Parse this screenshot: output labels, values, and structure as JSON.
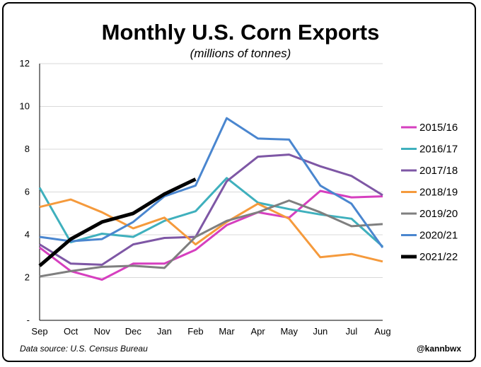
{
  "header": {
    "title": "Monthly U.S. Corn Exports",
    "subtitle": "(millions of tonnes)"
  },
  "footer": {
    "source": "Data source: U.S. Census Bureau",
    "handle": "@kannbwx"
  },
  "chart_data": {
    "type": "line",
    "title": "Monthly U.S. Corn Exports",
    "subtitle": "(millions of tonnes)",
    "xlabel": "",
    "ylabel": "",
    "categories": [
      "Sep",
      "Oct",
      "Nov",
      "Dec",
      "Jan",
      "Feb",
      "Mar",
      "Apr",
      "May",
      "Jun",
      "Jul",
      "Aug"
    ],
    "ylim": [
      0,
      12
    ],
    "yticks": [
      0,
      2,
      4,
      6,
      8,
      10,
      12
    ],
    "ytick_labels": [
      "-",
      "2",
      "4",
      "6",
      "8",
      "10",
      "12"
    ],
    "grid": true,
    "legend_position": "right",
    "series": [
      {
        "name": "2015/16",
        "color": "#d63fbf",
        "values": [
          3.4,
          2.3,
          1.9,
          2.65,
          2.65,
          3.3,
          4.45,
          5.05,
          4.8,
          6.05,
          5.75,
          5.8
        ]
      },
      {
        "name": "2016/17",
        "color": "#3fb0bd",
        "values": [
          6.2,
          3.65,
          4.05,
          3.9,
          4.65,
          5.1,
          6.65,
          5.5,
          5.2,
          4.95,
          4.75,
          3.45
        ]
      },
      {
        "name": "2017/18",
        "color": "#7e57a5",
        "values": [
          3.55,
          2.65,
          2.6,
          3.55,
          3.85,
          3.9,
          6.5,
          7.65,
          7.75,
          7.2,
          6.75,
          5.85
        ]
      },
      {
        "name": "2018/19",
        "color": "#f59a3c",
        "values": [
          5.3,
          5.65,
          5.05,
          4.3,
          4.8,
          3.55,
          4.6,
          5.45,
          4.75,
          2.95,
          3.1,
          2.75
        ]
      },
      {
        "name": "2019/20",
        "color": "#7f7f7f",
        "values": [
          2.05,
          2.3,
          2.5,
          2.55,
          2.45,
          3.9,
          4.65,
          5.05,
          5.6,
          5.05,
          4.4,
          4.5
        ]
      },
      {
        "name": "2020/21",
        "color": "#4a86cf",
        "values": [
          3.9,
          3.7,
          3.8,
          4.6,
          5.8,
          6.3,
          9.45,
          8.5,
          8.45,
          6.3,
          5.45,
          3.4
        ]
      },
      {
        "name": "2021/22",
        "color": "#000000",
        "values": [
          2.55,
          3.8,
          4.6,
          5.0,
          5.9,
          6.6,
          null,
          null,
          null,
          null,
          null,
          null
        ]
      }
    ]
  }
}
